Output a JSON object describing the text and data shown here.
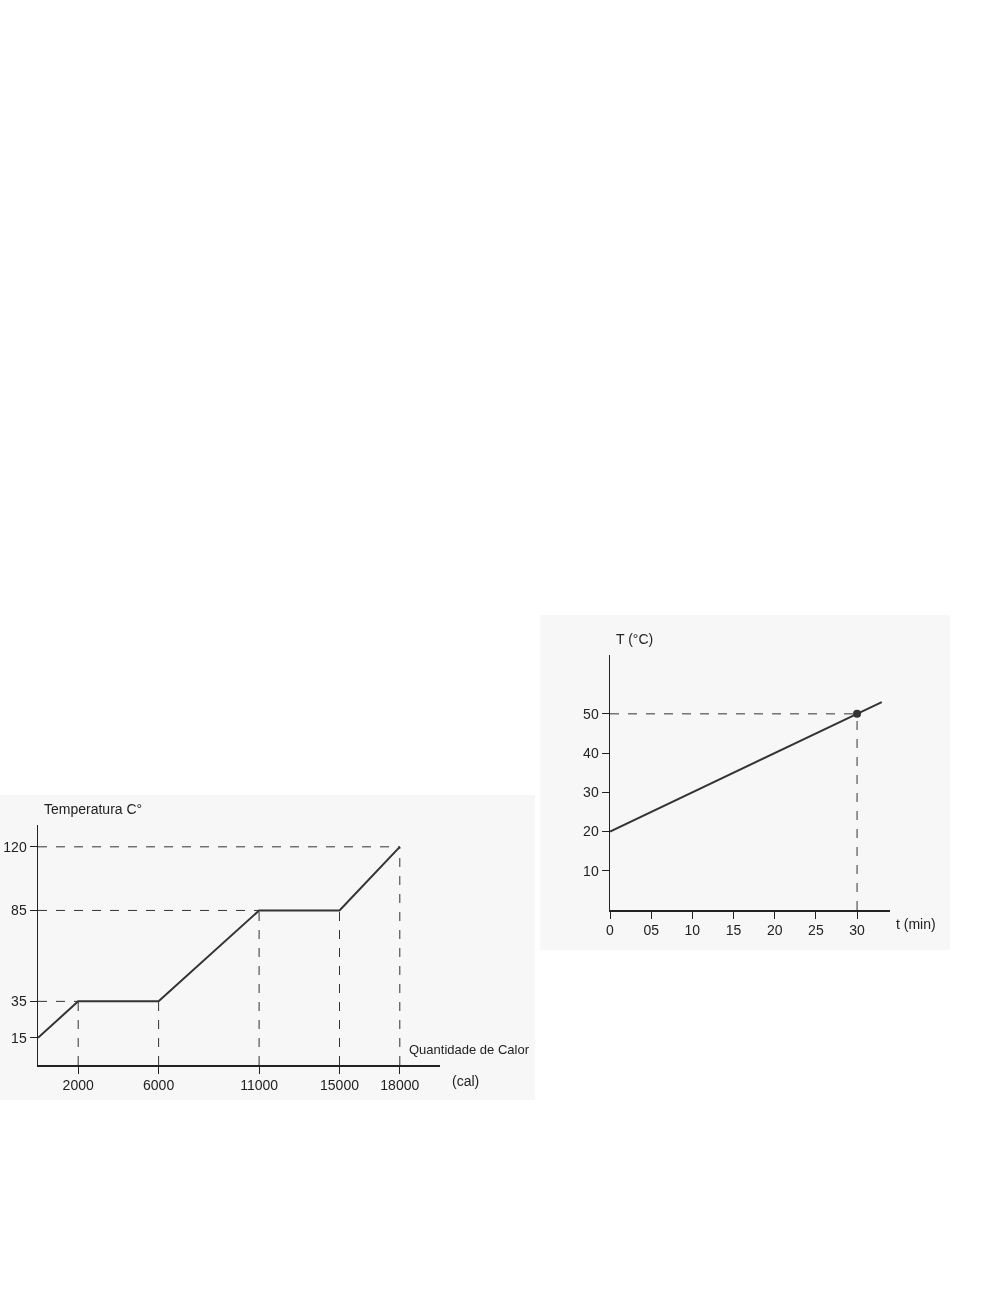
{
  "chart_data": [
    {
      "type": "line",
      "ylabel": "Temperatura C°",
      "xlabel": "Quantidade de Calor",
      "annotations": [
        "(cal)"
      ],
      "x": [
        0,
        2000,
        6000,
        11000,
        15000,
        18000
      ],
      "series": [
        {
          "color": "#333333",
          "values": [
            15,
            35,
            35,
            85,
            85,
            120
          ]
        }
      ],
      "xlim": [
        0,
        20000
      ],
      "ylim": [
        0,
        132
      ],
      "xticks": [
        2000,
        6000,
        11000,
        15000,
        18000
      ],
      "yticks": [
        15,
        35,
        85,
        120
      ],
      "grid": false,
      "ref_lines": [
        {
          "axis": "y",
          "value": 120,
          "line_style": "dashed"
        },
        {
          "axis": "y",
          "value": 85,
          "line_style": "dashed"
        },
        {
          "axis": "y",
          "value": 35,
          "line_style": "dashed"
        },
        {
          "axis": "x",
          "value": 2000,
          "line_style": "dashed"
        },
        {
          "axis": "x",
          "value": 6000,
          "line_style": "dashed"
        },
        {
          "axis": "x",
          "value": 11000,
          "line_style": "dashed"
        },
        {
          "axis": "x",
          "value": 15000,
          "line_style": "dashed"
        },
        {
          "axis": "x",
          "value": 18000,
          "line_style": "dashed"
        }
      ]
    },
    {
      "type": "line",
      "ylabel": "T (°C)",
      "xlabel": "t (min)",
      "series": [
        {
          "color": "#333333",
          "x": [
            0,
            30,
            33
          ],
          "values": [
            20,
            50,
            53
          ]
        },
        {
          "type": "scatter",
          "marker": "circle",
          "color": "#333333",
          "x": [
            30
          ],
          "values": [
            50
          ]
        }
      ],
      "xlim": [
        0,
        34
      ],
      "ylim": [
        0,
        65
      ],
      "xticks": [
        0,
        {
          "value": 5,
          "label": "05"
        },
        10,
        15,
        20,
        25,
        30
      ],
      "yticks": [
        10,
        20,
        30,
        40,
        50
      ],
      "grid": false,
      "ref_lines": [
        {
          "axis": "y",
          "value": 50,
          "line_style": "dashed"
        },
        {
          "axis": "x",
          "value": 30,
          "line_style": "dashed"
        }
      ]
    }
  ]
}
